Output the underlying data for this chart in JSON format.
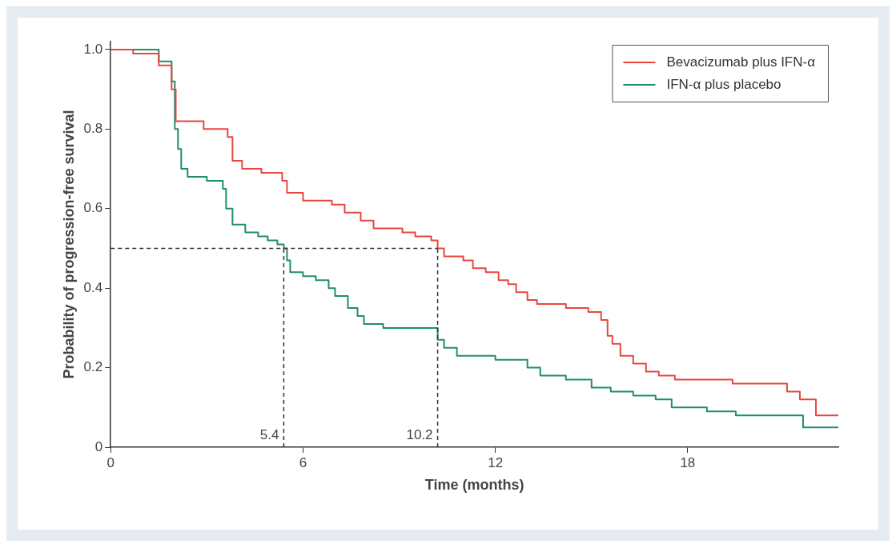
{
  "chart_data": {
    "type": "step",
    "xlabel": "Time (months)",
    "ylabel": "Probability of progression-free survival",
    "xlim": [
      0,
      22.7
    ],
    "xticks": [
      0,
      6,
      12,
      18
    ],
    "ylim": [
      0,
      1.02
    ],
    "yticks": [
      0,
      0.2,
      0.4,
      0.6,
      0.8,
      {
        "value": 1,
        "label": "1.0"
      }
    ],
    "grid": false,
    "legend": "top right",
    "line_style": "solid",
    "marker": "none",
    "series": [
      {
        "name": "Bevacizumab plus IFN-α",
        "color": "#e8473f",
        "x": [
          0,
          0.7,
          1.5,
          1.9,
          2.03,
          2.9,
          3.65,
          3.8,
          4.1,
          4.7,
          5.35,
          5.5,
          6.0,
          6.9,
          7.3,
          7.8,
          8.2,
          9.1,
          9.5,
          10.0,
          10.2,
          10.4,
          11.0,
          11.3,
          11.7,
          12.1,
          12.4,
          12.65,
          13.0,
          13.3,
          14.2,
          14.9,
          15.3,
          15.5,
          15.65,
          15.9,
          16.3,
          16.7,
          17.1,
          17.6,
          19.4,
          21.1,
          21.5,
          22.0,
          22.7
        ],
        "values": [
          1.0,
          0.99,
          0.96,
          0.9,
          0.82,
          0.8,
          0.78,
          0.72,
          0.7,
          0.69,
          0.67,
          0.64,
          0.62,
          0.61,
          0.59,
          0.57,
          0.55,
          0.54,
          0.53,
          0.52,
          0.5,
          0.48,
          0.47,
          0.45,
          0.44,
          0.42,
          0.41,
          0.39,
          0.37,
          0.36,
          0.35,
          0.34,
          0.32,
          0.28,
          0.26,
          0.23,
          0.21,
          0.19,
          0.18,
          0.17,
          0.16,
          0.14,
          0.12,
          0.08,
          0.08
        ]
      },
      {
        "name": "IFN-α plus placebo",
        "color": "#1f8f6a",
        "x": [
          0,
          1.5,
          1.9,
          2.0,
          2.1,
          2.2,
          2.4,
          3.0,
          3.5,
          3.6,
          3.8,
          4.2,
          4.6,
          4.9,
          5.2,
          5.4,
          5.5,
          5.6,
          6.0,
          6.4,
          6.8,
          7.0,
          7.4,
          7.7,
          7.9,
          8.5,
          10.2,
          10.4,
          10.8,
          12.0,
          13.0,
          13.4,
          14.2,
          15.0,
          15.6,
          16.3,
          17.0,
          17.5,
          18.6,
          19.5,
          21.6,
          22.7
        ],
        "values": [
          1.0,
          0.97,
          0.92,
          0.8,
          0.75,
          0.7,
          0.68,
          0.67,
          0.65,
          0.6,
          0.56,
          0.54,
          0.53,
          0.52,
          0.51,
          0.5,
          0.47,
          0.44,
          0.43,
          0.42,
          0.4,
          0.38,
          0.35,
          0.33,
          0.31,
          0.3,
          0.27,
          0.25,
          0.23,
          0.22,
          0.2,
          0.18,
          0.17,
          0.15,
          0.14,
          0.13,
          0.12,
          0.1,
          0.09,
          0.08,
          0.05,
          0.05
        ]
      }
    ],
    "ref_lines": [
      {
        "axis": "y",
        "value": 0.5,
        "color": "#333333",
        "line_style": "dashed"
      },
      {
        "axis": "x",
        "value": 5.4,
        "label": "5.4",
        "color": "#333333",
        "line_style": "dashed"
      },
      {
        "axis": "x",
        "value": 10.2,
        "label": "10.2",
        "color": "#333333",
        "line_style": "dashed"
      }
    ]
  }
}
